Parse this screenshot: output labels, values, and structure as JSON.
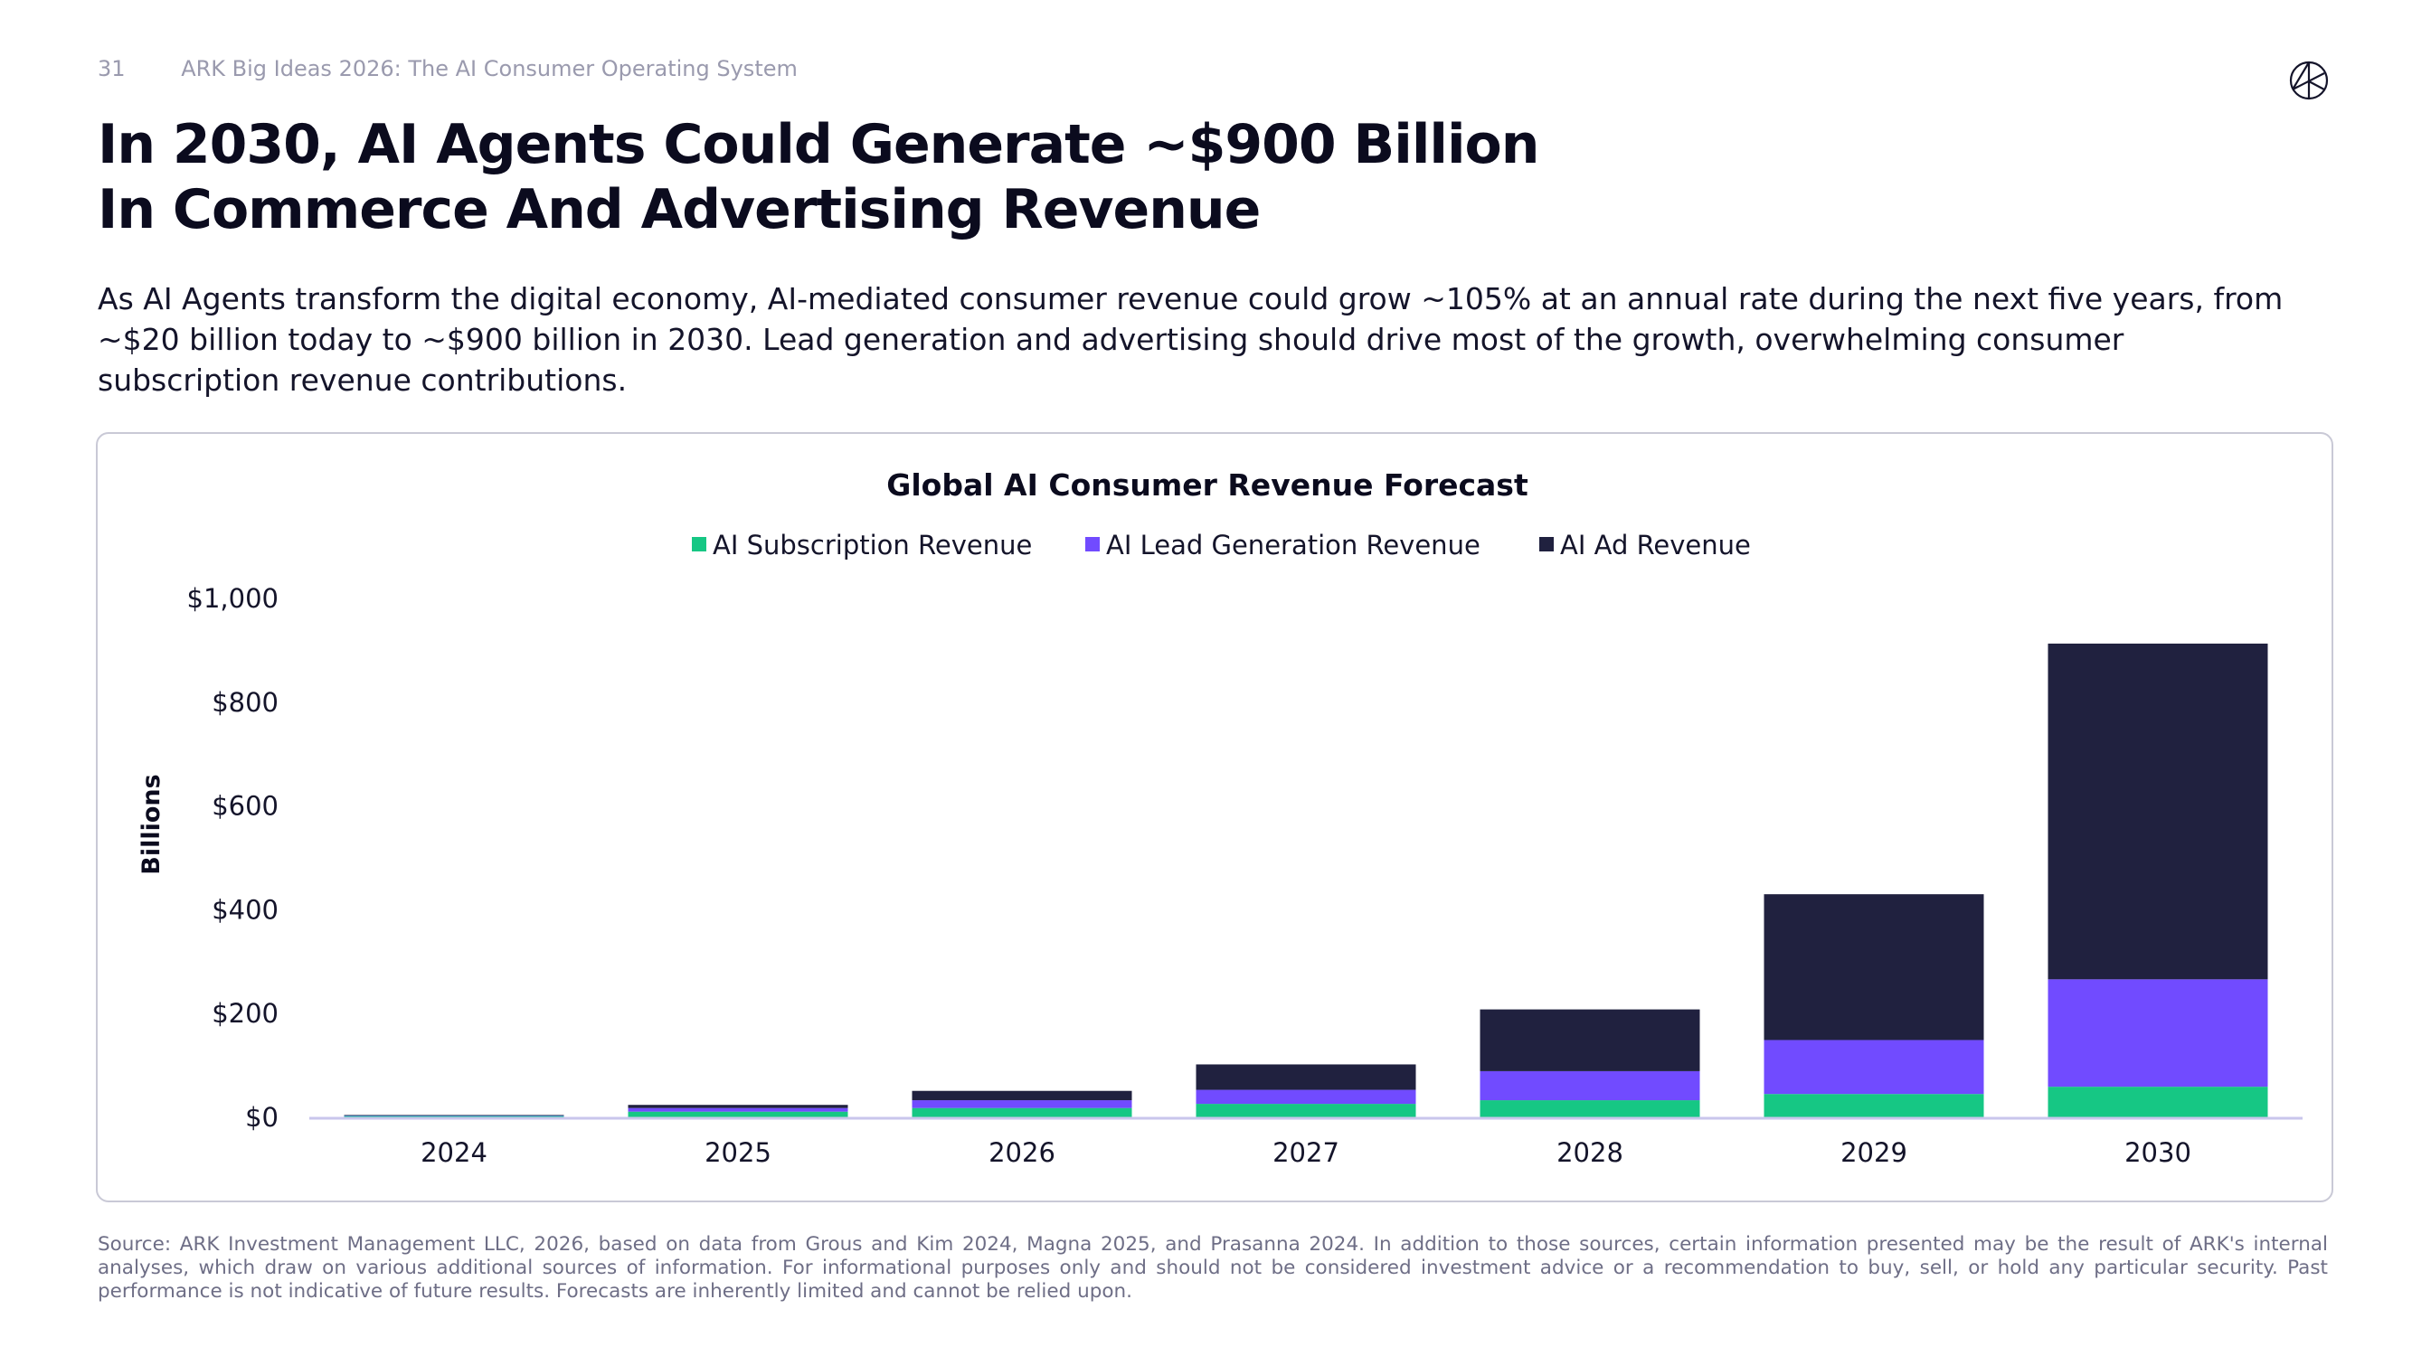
{
  "header": {
    "page_number": "31",
    "deck_title": "ARK Big Ideas 2026: The AI Consumer Operating System"
  },
  "title_line1": "In 2030, AI Agents Could Generate ~$900 Billion",
  "title_line2": "In Commerce And Advertising Revenue",
  "description": "As AI Agents transform the digital economy, AI-mediated consumer revenue could grow ~105% at an annual rate during the next five years, from ~$20 billion today to ~$900 billion in 2030. Lead generation and advertising should drive most of the growth, overwhelming consumer subscription revenue contributions.",
  "footnote": "Source: ARK Investment Management LLC, 2026, based on data from Grous and Kim 2024, Magna 2025, and Prasanna 2024. In addition to those sources, certain information presented may be the result of ARK's internal analyses, which draw on various additional sources of information. For informational purposes only and should not be considered investment advice or a recommendation to buy, sell, or hold any particular security. Past performance is not indicative of future results. Forecasts are inherently limited and cannot be relied upon.",
  "logo": "ark-logo-icon",
  "chart_data": {
    "type": "bar",
    "stacked": true,
    "title": "Global AI Consumer Revenue Forecast",
    "ylabel": "Billions",
    "xlabel": "",
    "ylim": [
      0,
      1000
    ],
    "yticks": [
      "$0",
      "$200",
      "$400",
      "$600",
      "$800",
      "$1,000"
    ],
    "ytick_values": [
      0,
      200,
      400,
      600,
      800,
      1000
    ],
    "grid": false,
    "legend_position": "top-center",
    "categories": [
      "2024",
      "2025",
      "2026",
      "2027",
      "2028",
      "2029",
      "2030"
    ],
    "series": [
      {
        "name": "AI Subscription Revenue",
        "color": "#16c784",
        "values": [
          3,
          11,
          18,
          26,
          33,
          45,
          59
        ]
      },
      {
        "name": "AI Lead Generation Revenue",
        "color": "#714bff",
        "values": [
          0.5,
          7,
          15,
          27,
          56,
          104,
          207
        ]
      },
      {
        "name": "AI Ad Revenue",
        "color": "#20213f",
        "values": [
          1,
          6,
          18,
          49,
          119,
          281,
          647
        ]
      }
    ]
  }
}
